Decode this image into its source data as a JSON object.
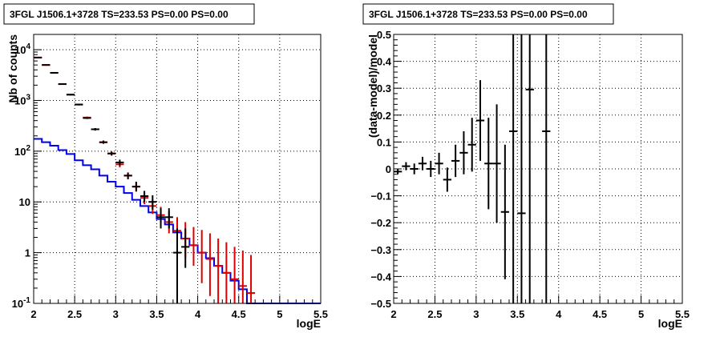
{
  "chart_data": [
    {
      "type": "line",
      "title": "3FGL J1506.1+3728 TS=233.53 PS=0.00 PS=0.00",
      "xlabel": "logE",
      "ylabel": "Nb of counts",
      "xlim": [
        2,
        5.5
      ],
      "ylim": [
        0.1,
        20000
      ],
      "log_y": true,
      "grid": true,
      "x_ticks": [
        "2",
        "2.5",
        "3",
        "3.5",
        "4",
        "4.5",
        "5",
        "5.5"
      ],
      "y_ticks": [
        "10^-1",
        "1",
        "10",
        "10^2",
        "10^3",
        "10^4"
      ],
      "colors": {
        "data": "#000000",
        "model_points": "#dd0000",
        "model_hist": "#0000ee"
      },
      "series": [
        {
          "role": "model_hist",
          "bin_edges": [
            2.0,
            2.1,
            2.2,
            2.3,
            2.4,
            2.5,
            2.6,
            2.7,
            2.8,
            2.9,
            3.0,
            3.1,
            3.2,
            3.3,
            3.4,
            3.5,
            3.6,
            3.7,
            3.8,
            3.9,
            4.0,
            4.1,
            4.2,
            4.3,
            4.4,
            4.5,
            4.6,
            4.7,
            4.8,
            4.9,
            5.0,
            5.1,
            5.2,
            5.3,
            5.4,
            5.5
          ],
          "values": [
            175,
            150,
            128,
            105,
            88,
            66,
            53,
            44,
            33,
            25,
            20,
            15,
            11,
            8.3,
            6.2,
            4.6,
            3.6,
            2.5,
            1.9,
            1.4,
            1.0,
            0.78,
            0.55,
            0.4,
            0.28,
            0.19,
            0.1,
            0.1,
            0.1,
            0.1,
            0.1,
            0.1,
            0.1,
            0.1,
            0.1
          ]
        },
        {
          "role": "model_points",
          "x": [
            2.05,
            2.15,
            2.25,
            2.35,
            2.45,
            2.55,
            2.65,
            2.75,
            2.85,
            2.95,
            3.05,
            3.15,
            3.25,
            3.35,
            3.45,
            3.55,
            3.65,
            3.75,
            3.85,
            3.95,
            4.05,
            4.15,
            4.25,
            4.35,
            4.45,
            4.55,
            4.65
          ],
          "y": [
            7000,
            5000,
            3500,
            2100,
            1300,
            830,
            460,
            270,
            150,
            90,
            55,
            33,
            20,
            12,
            8.3,
            5.5,
            4.0,
            2.7,
            1.9,
            1.4,
            1.0,
            0.75,
            0.55,
            0.4,
            0.3,
            0.22,
            0.16
          ],
          "err_low": [
            6900,
            4920,
            3440,
            2050,
            1260,
            800,
            440,
            255,
            140,
            82,
            48,
            28,
            16,
            9,
            5.8,
            3.6,
            2.4,
            1.4,
            0.8,
            0.55,
            0.25,
            0.14,
            0.1,
            0.1,
            0.1,
            0.1,
            0.1
          ],
          "err_high": [
            7100,
            5080,
            3560,
            2150,
            1340,
            860,
            480,
            285,
            162,
            98,
            62,
            38,
            25,
            15.5,
            11,
            8.0,
            6.5,
            5.0,
            4.0,
            3.2,
            2.8,
            2.4,
            1.9,
            1.6,
            1.3,
            1.1,
            0.9
          ]
        },
        {
          "role": "data",
          "x": [
            2.05,
            2.15,
            2.25,
            2.35,
            2.45,
            2.55,
            2.65,
            2.75,
            2.85,
            2.95,
            3.05,
            3.15,
            3.25,
            3.35,
            3.45,
            3.55,
            3.65,
            3.75,
            3.85
          ],
          "y": [
            7000,
            5000,
            3500,
            2100,
            1300,
            830,
            450,
            270,
            150,
            90,
            60,
            33,
            20,
            13,
            10,
            5,
            5,
            1.0,
            1.3
          ],
          "err_low": [
            6900,
            4920,
            3440,
            2050,
            1260,
            800,
            430,
            255,
            140,
            82,
            52,
            28,
            16,
            10,
            7,
            3,
            3,
            0.1,
            0.5
          ],
          "err_high": [
            7100,
            5080,
            3560,
            2150,
            1340,
            860,
            470,
            285,
            162,
            98,
            68,
            38,
            25,
            16.5,
            13.5,
            7.5,
            7.5,
            3,
            3
          ]
        }
      ]
    },
    {
      "type": "scatter",
      "title": "3FGL J1506.1+3728 TS=233.53 PS=0.00 PS=0.00",
      "xlabel": "logE",
      "ylabel": "(data-model)/model",
      "xlim": [
        2,
        5.5
      ],
      "ylim": [
        -0.5,
        0.5
      ],
      "grid": true,
      "x_ticks": [
        "2",
        "2.5",
        "3",
        "3.5",
        "4",
        "4.5",
        "5",
        "5.5"
      ],
      "y_ticks": [
        "−0.5",
        "−0.4",
        "−0.3",
        "−0.2",
        "−0.1",
        "0",
        "0.1",
        "0.2",
        "0.3",
        "0.4",
        "0.5"
      ],
      "series": [
        {
          "x": [
            2.05,
            2.15,
            2.25,
            2.35,
            2.45,
            2.55,
            2.65,
            2.75,
            2.85,
            2.95,
            3.05,
            3.15,
            3.25,
            3.35,
            3.45,
            3.55,
            3.65,
            3.85
          ],
          "y": [
            -0.01,
            0.01,
            0.0,
            0.02,
            0.0,
            0.02,
            -0.04,
            0.03,
            0.06,
            0.09,
            0.18,
            0.02,
            0.02,
            -0.16,
            0.14,
            -0.165,
            0.295,
            0.14
          ],
          "err": [
            0.01,
            0.015,
            0.02,
            0.025,
            0.03,
            0.04,
            0.045,
            0.06,
            0.08,
            0.1,
            0.15,
            0.17,
            0.22,
            0.25,
            0.7,
            0.7,
            0.8,
            0.8
          ]
        }
      ]
    }
  ]
}
